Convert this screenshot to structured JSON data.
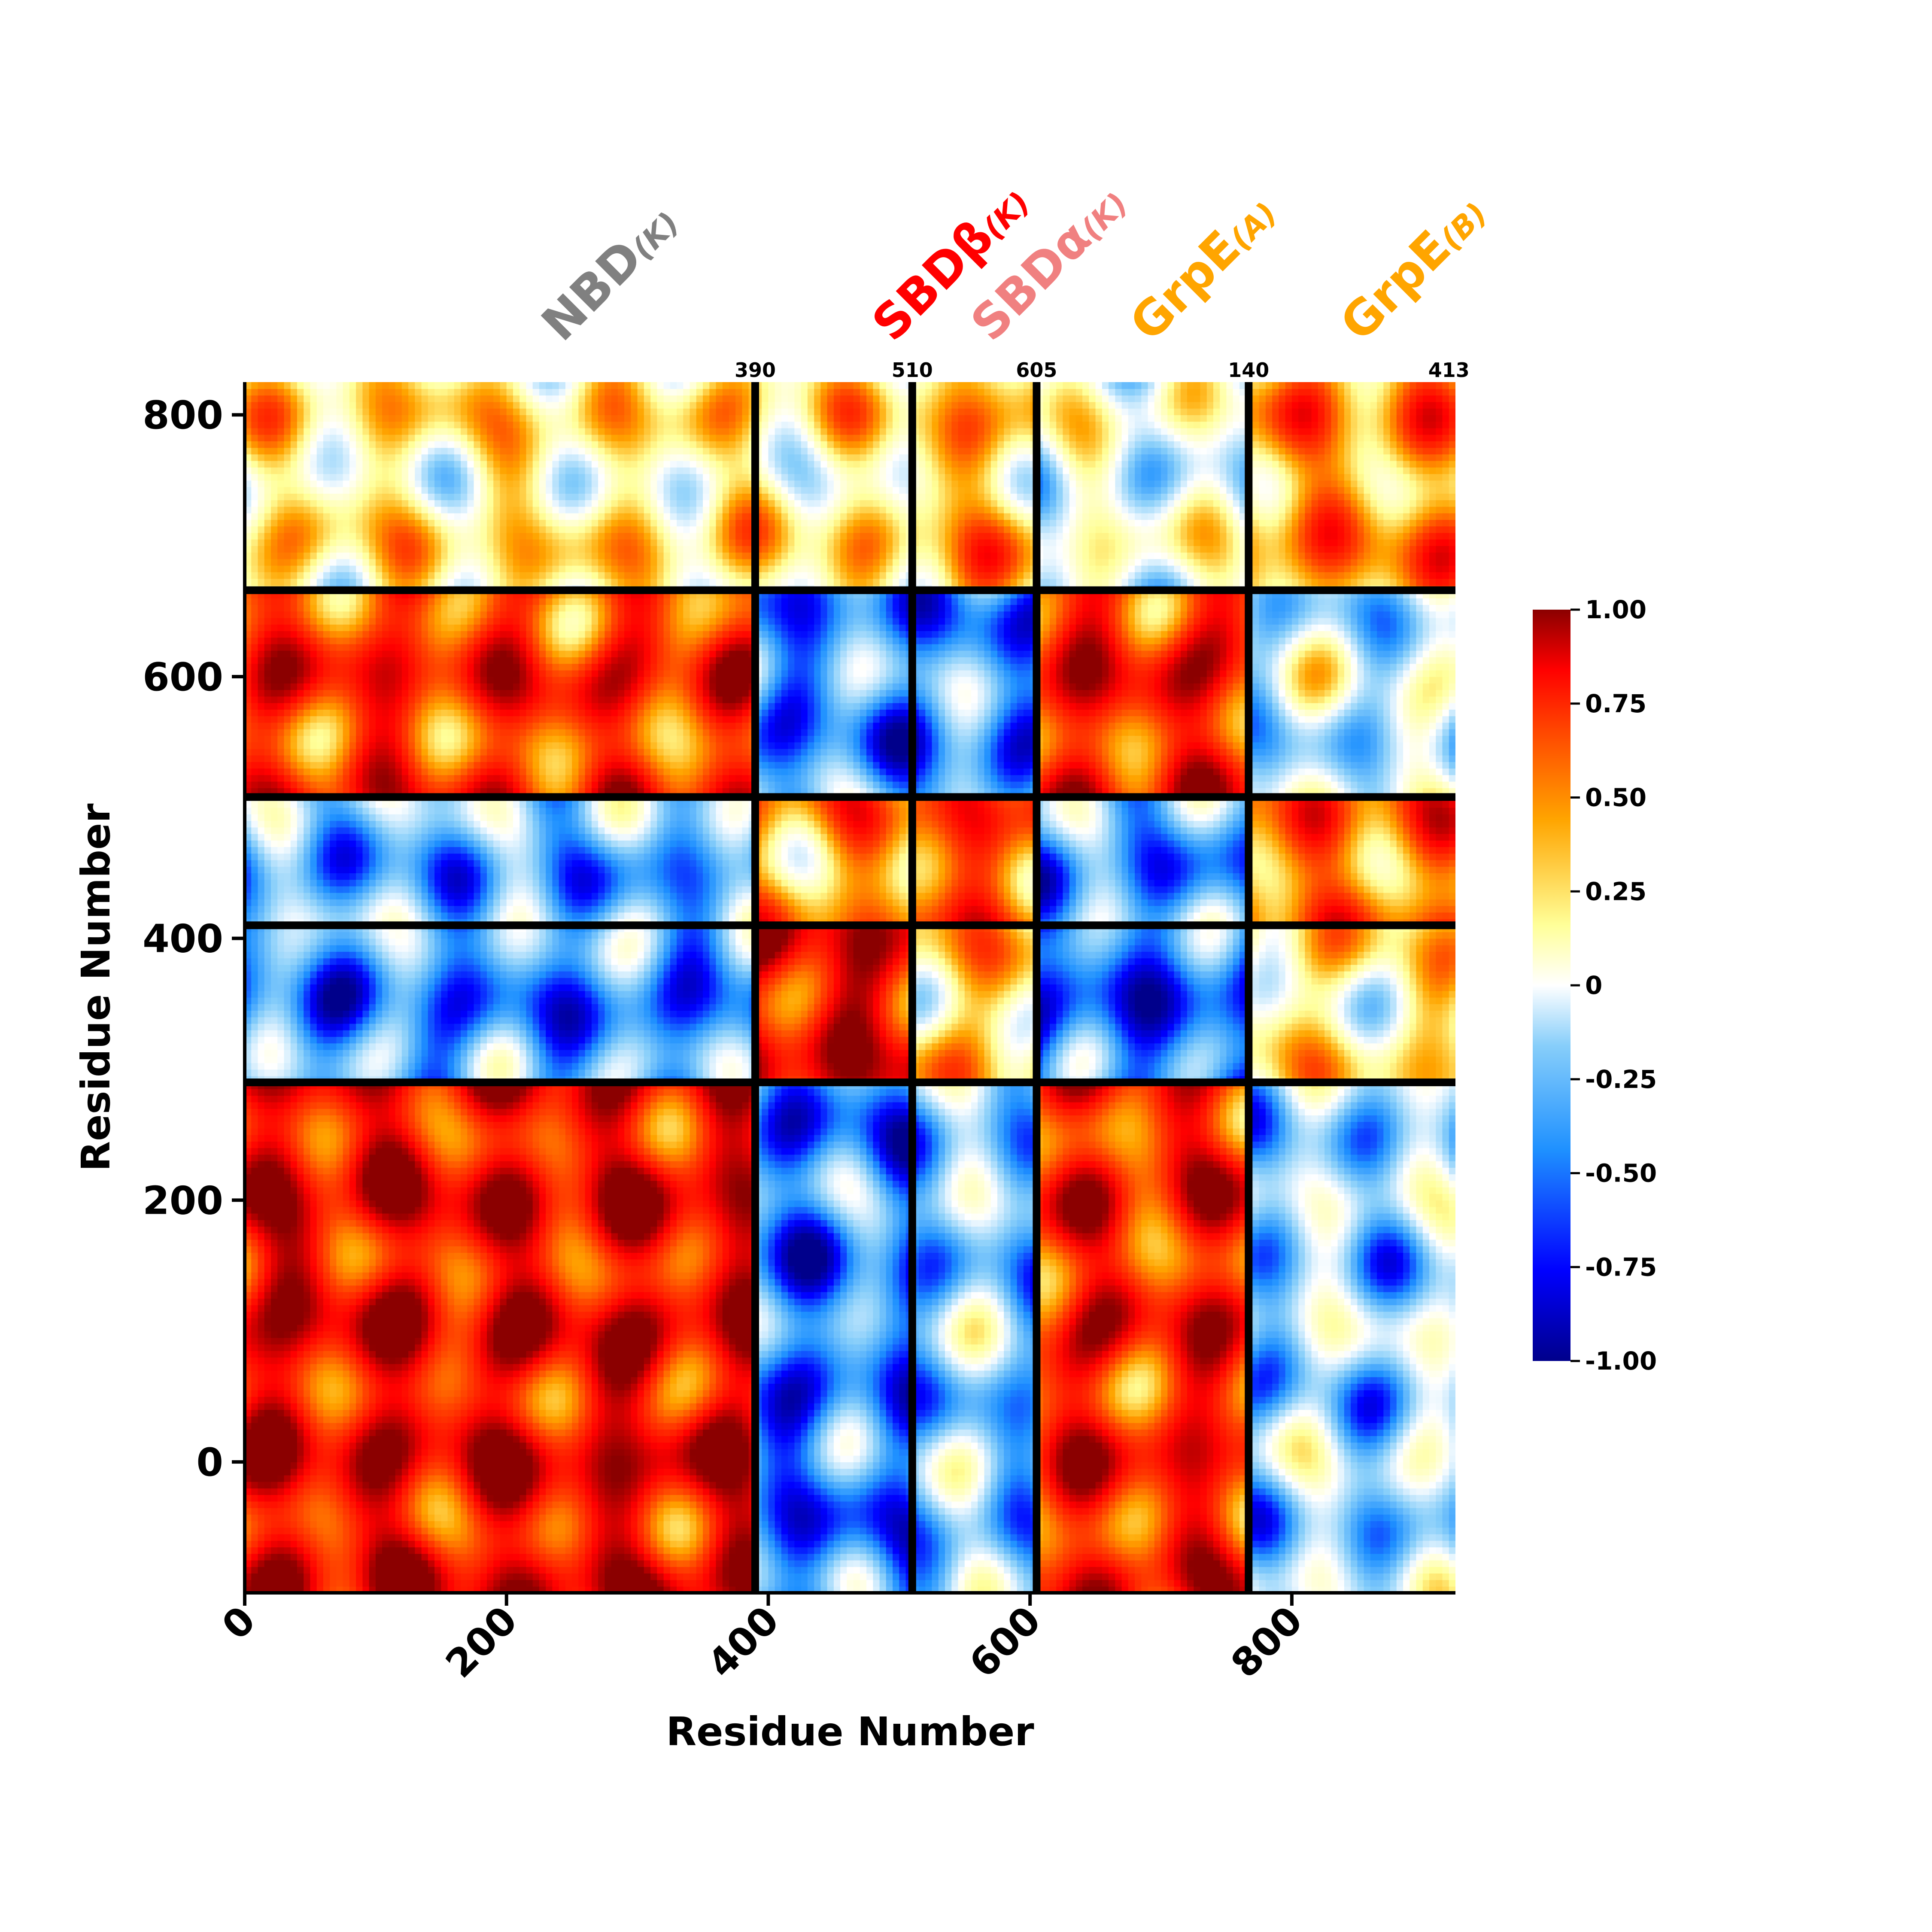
{
  "chart_data": {
    "type": "heatmap",
    "title": "",
    "xlabel": "Residue Number",
    "ylabel": "Residue Number",
    "xlim": [
      0,
      925
    ],
    "ylim": [
      -100,
      825
    ],
    "x_ticks": [
      0,
      200,
      400,
      600,
      800
    ],
    "y_ticks": [
      0,
      200,
      400,
      600,
      800
    ],
    "x_tick_labels": [
      "0",
      "200",
      "400",
      "600",
      "800"
    ],
    "y_tick_labels": [
      "0",
      "200",
      "400",
      "600",
      "800"
    ],
    "value_range": [
      -1.0,
      1.0
    ],
    "colormap": [
      "#00008b",
      "#0000ff",
      "#1e90ff",
      "#87cefa",
      "#ffffff",
      "#ffff99",
      "#ffa500",
      "#ff4500",
      "#ff0000",
      "#8b0000"
    ],
    "colorbar": {
      "ticks": [
        1.0,
        0.75,
        0.5,
        0.25,
        0,
        -0.25,
        -0.5,
        -0.75,
        -1.0
      ],
      "tick_labels": [
        "1.00",
        "0.75",
        "0.50",
        "0.25",
        "0",
        "-0.25",
        "-0.50",
        "-0.75",
        "-1.00"
      ]
    },
    "vertical_dividers": [
      390,
      510,
      605,
      767
    ],
    "horizontal_dividers": [
      290,
      410,
      508,
      666
    ],
    "boundary_labels": [
      {
        "x": 390,
        "label": "390"
      },
      {
        "x": 510,
        "label": "510"
      },
      {
        "x": 605,
        "label": "605"
      },
      {
        "x": 767,
        "label": "140"
      },
      {
        "x": 920,
        "label": "413"
      }
    ],
    "domains": [
      {
        "label": "NBD",
        "sub": "(K)",
        "color": "#808080",
        "start": 0,
        "end": 390
      },
      {
        "label": "SBDβ",
        "sub": "(K)",
        "color": "#ff0000",
        "start": 390,
        "end": 510
      },
      {
        "label": "SBDα",
        "sub": "(K)",
        "color": "#f08080",
        "start": 510,
        "end": 605
      },
      {
        "label": "GrpE",
        "sub": "(A)",
        "color": "#ffa500",
        "start": 605,
        "end": 767
      },
      {
        "label": "GrpE",
        "sub": "(B)",
        "color": "#ffa500",
        "start": 767,
        "end": 920
      }
    ],
    "block_mean_correlation": {
      "note_rows_bottom_to_top": [
        "NBD",
        "SBDb",
        "SBDa",
        "GrpE(A)",
        "GrpE(B)"
      ],
      "values": [
        [
          0.75,
          -0.55,
          -0.35,
          0.65,
          -0.3
        ],
        [
          -0.5,
          0.75,
          0.2,
          -0.6,
          0.1
        ],
        [
          -0.4,
          0.35,
          0.55,
          -0.45,
          0.45
        ],
        [
          0.6,
          -0.5,
          -0.5,
          0.65,
          -0.2
        ],
        [
          0.1,
          0.1,
          0.25,
          -0.1,
          0.35
        ]
      ]
    }
  }
}
